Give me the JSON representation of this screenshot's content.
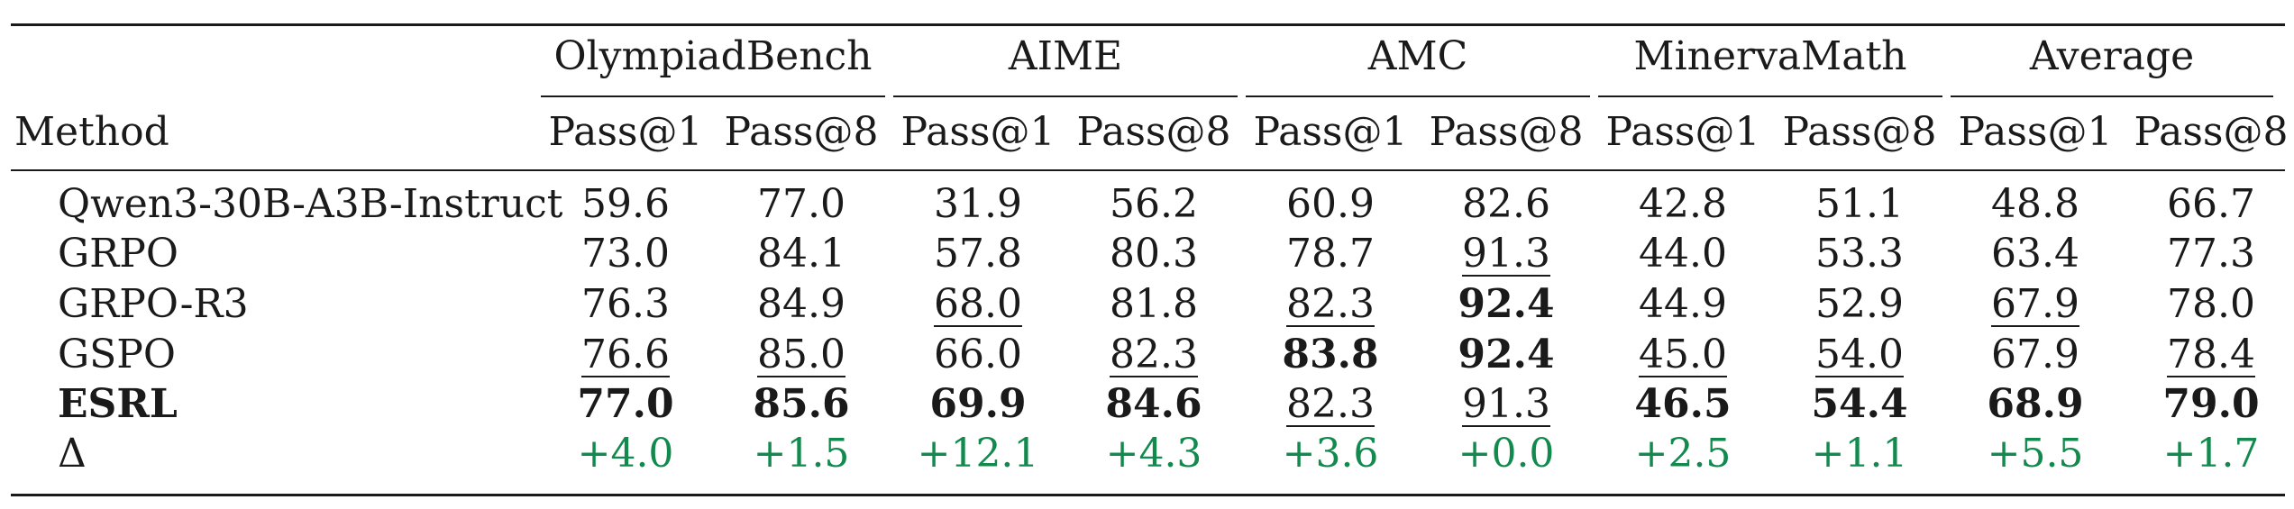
{
  "table": {
    "header": {
      "method_label": "Method",
      "groups": [
        "OlympiadBench",
        "AIME",
        "AMC",
        "MinervaMath",
        "Average"
      ],
      "subcols": [
        "Pass@1",
        "Pass@8",
        "Pass@1",
        "Pass@8",
        "Pass@1",
        "Pass@8",
        "Pass@1",
        "Pass@8",
        "Pass@1",
        "Pass@8"
      ]
    },
    "rows": [
      {
        "method": "Qwen3-30B-A3B-Instruct",
        "bold": false,
        "delta": false,
        "values": [
          "59.6",
          "77.0",
          "31.9",
          "56.2",
          "60.9",
          "82.6",
          "42.8",
          "51.1",
          "48.8",
          "66.7"
        ],
        "underline": [
          false,
          false,
          false,
          false,
          false,
          false,
          false,
          false,
          false,
          false
        ],
        "bolds": [
          false,
          false,
          false,
          false,
          false,
          false,
          false,
          false,
          false,
          false
        ]
      },
      {
        "method": "GRPO",
        "bold": false,
        "delta": false,
        "values": [
          "73.0",
          "84.1",
          "57.8",
          "80.3",
          "78.7",
          "91.3",
          "44.0",
          "53.3",
          "63.4",
          "77.3"
        ],
        "underline": [
          false,
          false,
          false,
          false,
          false,
          true,
          false,
          false,
          false,
          false
        ],
        "bolds": [
          false,
          false,
          false,
          false,
          false,
          false,
          false,
          false,
          false,
          false
        ]
      },
      {
        "method": "GRPO-R3",
        "bold": false,
        "delta": false,
        "values": [
          "76.3",
          "84.9",
          "68.0",
          "81.8",
          "82.3",
          "92.4",
          "44.9",
          "52.9",
          "67.9",
          "78.0"
        ],
        "underline": [
          false,
          false,
          true,
          false,
          true,
          false,
          false,
          false,
          true,
          false
        ],
        "bolds": [
          false,
          false,
          false,
          false,
          false,
          true,
          false,
          false,
          false,
          false
        ]
      },
      {
        "method": "GSPO",
        "bold": false,
        "delta": false,
        "values": [
          "76.6",
          "85.0",
          "66.0",
          "82.3",
          "83.8",
          "92.4",
          "45.0",
          "54.0",
          "67.9",
          "78.4"
        ],
        "underline": [
          true,
          true,
          false,
          true,
          false,
          false,
          true,
          true,
          false,
          true
        ],
        "bolds": [
          false,
          false,
          false,
          false,
          true,
          true,
          false,
          false,
          false,
          false
        ]
      },
      {
        "method": "ESRL",
        "bold": true,
        "delta": false,
        "values": [
          "77.0",
          "85.6",
          "69.9",
          "84.6",
          "82.3",
          "91.3",
          "46.5",
          "54.4",
          "68.9",
          "79.0"
        ],
        "underline": [
          false,
          false,
          false,
          false,
          true,
          true,
          false,
          false,
          false,
          false
        ],
        "bolds": [
          true,
          true,
          true,
          true,
          false,
          false,
          true,
          true,
          true,
          true
        ]
      },
      {
        "method": "Δ",
        "bold": false,
        "delta": true,
        "values": [
          "+4.0",
          "+1.5",
          "+12.1",
          "+4.3",
          "+3.6",
          "+0.0",
          "+2.5",
          "+1.1",
          "+5.5",
          "+1.7"
        ],
        "underline": [
          false,
          false,
          false,
          false,
          false,
          false,
          false,
          false,
          false,
          false
        ],
        "bolds": [
          false,
          false,
          false,
          false,
          false,
          false,
          false,
          false,
          false,
          false
        ]
      }
    ],
    "colors": {
      "delta": "#128a4e",
      "text": "#1a1a1a"
    }
  }
}
